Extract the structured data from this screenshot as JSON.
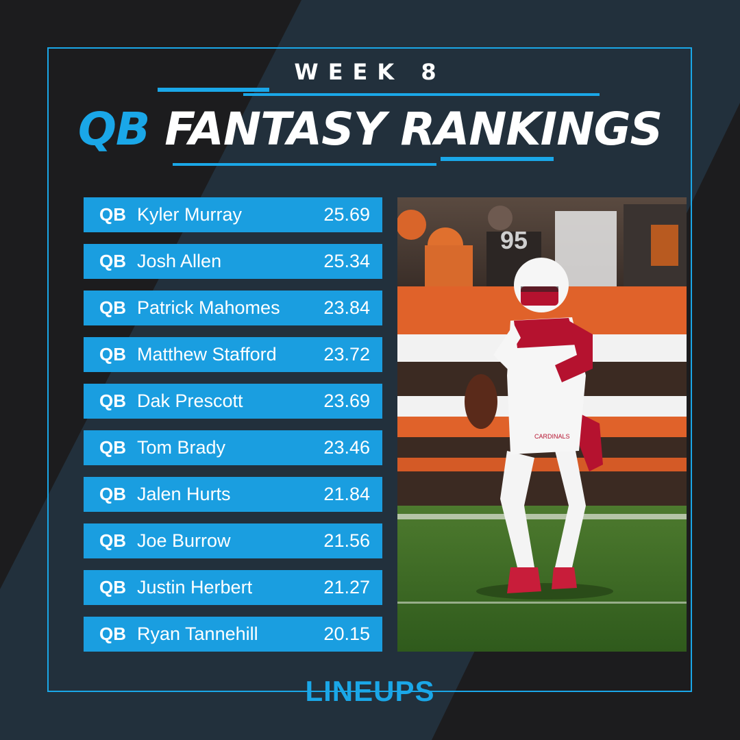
{
  "colors": {
    "accent": "#1aa7e8",
    "row_bg": "#1a9ee0",
    "dark": "#1c1c1e",
    "slate": "#22303c"
  },
  "header": {
    "week": "WEEK 8",
    "title_accent": "QB",
    "title_main": "FANTASY RANKINGS"
  },
  "rankings": [
    {
      "pos": "QB",
      "name": "Kyler Murray",
      "pts": "25.69"
    },
    {
      "pos": "QB",
      "name": "Josh Allen",
      "pts": "25.34"
    },
    {
      "pos": "QB",
      "name": "Patrick Mahomes",
      "pts": "23.84"
    },
    {
      "pos": "QB",
      "name": "Matthew Stafford",
      "pts": "23.72"
    },
    {
      "pos": "QB",
      "name": "Dak Prescott",
      "pts": "23.69"
    },
    {
      "pos": "QB",
      "name": "Tom Brady",
      "pts": "23.46"
    },
    {
      "pos": "QB",
      "name": "Jalen Hurts",
      "pts": "21.84"
    },
    {
      "pos": "QB",
      "name": "Joe Burrow",
      "pts": "21.56"
    },
    {
      "pos": "QB",
      "name": "Justin Herbert",
      "pts": "21.27"
    },
    {
      "pos": "QB",
      "name": "Ryan Tannehill",
      "pts": "20.15"
    }
  ],
  "photo": {
    "jersey_text": "CARDINALS"
  },
  "footer": {
    "logo": "LINEUPS"
  }
}
